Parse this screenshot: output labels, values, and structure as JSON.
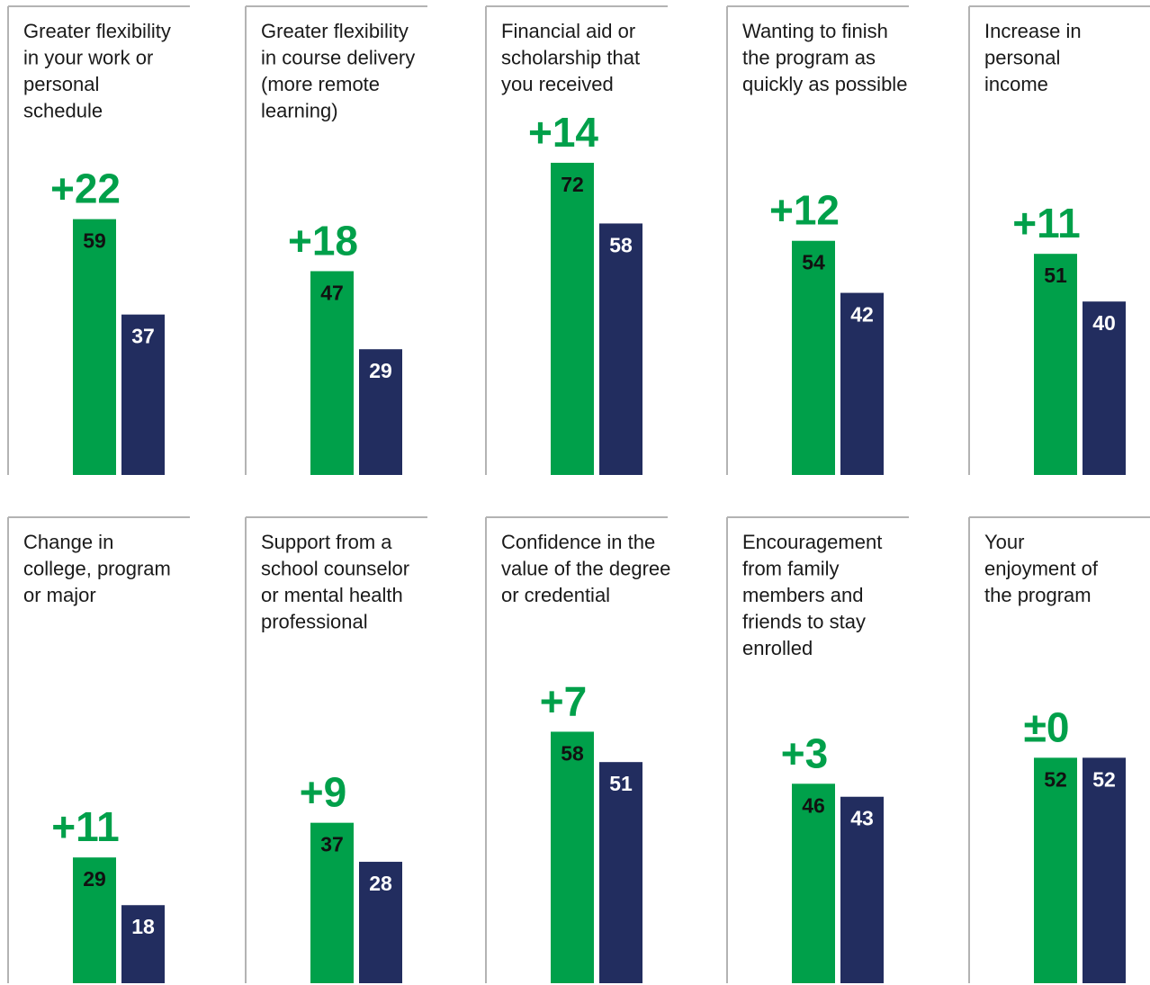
{
  "chart_data": [
    {
      "type": "bar",
      "title": [
        "Greater flexibility",
        "in your work or",
        "personal",
        "schedule"
      ],
      "difference": "+22",
      "values": [
        59,
        37
      ]
    },
    {
      "type": "bar",
      "title": [
        "Greater flexibility",
        "in course delivery",
        "(more remote",
        "learning)"
      ],
      "difference": "+18",
      "values": [
        47,
        29
      ]
    },
    {
      "type": "bar",
      "title": [
        "Financial aid or",
        "scholarship that",
        "you received"
      ],
      "difference": "+14",
      "values": [
        72,
        58
      ]
    },
    {
      "type": "bar",
      "title": [
        "Wanting to finish",
        "the program as",
        "quickly as possible"
      ],
      "difference": "+12",
      "values": [
        54,
        42
      ]
    },
    {
      "type": "bar",
      "title": [
        "Increase in",
        "personal",
        "income"
      ],
      "difference": "+11",
      "values": [
        51,
        40
      ]
    },
    {
      "type": "bar",
      "title": [
        "Change in",
        "college, program",
        "or major"
      ],
      "difference": "+11",
      "values": [
        29,
        18
      ]
    },
    {
      "type": "bar",
      "title": [
        "Support from a",
        "school counselor",
        "or mental health",
        "professional"
      ],
      "difference": "+9",
      "values": [
        37,
        28
      ]
    },
    {
      "type": "bar",
      "title": [
        "Confidence in the",
        "value of the degree",
        "or credential"
      ],
      "difference": "+7",
      "values": [
        58,
        51
      ]
    },
    {
      "type": "bar",
      "title": [
        "Encouragement",
        "from family",
        "members and",
        "friends to stay",
        "enrolled"
      ],
      "difference": "+3",
      "values": [
        46,
        43
      ]
    },
    {
      "type": "bar",
      "title": [
        "Your",
        "enjoyment of",
        "the program"
      ],
      "difference": "±0",
      "values": [
        52,
        52
      ]
    }
  ],
  "colors": {
    "series_1": "#00a04a",
    "series_2": "#222d5f",
    "frame": "#b3b3b3",
    "text": "#1a1a1a"
  }
}
